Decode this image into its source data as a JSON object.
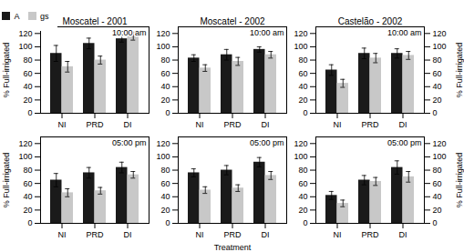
{
  "chart_data": [
    {
      "type": "bar",
      "title": "Moscatel - 2001",
      "annotation": "10:00 am",
      "categories": [
        "NI",
        "PRD",
        "DI"
      ],
      "series": [
        {
          "name": "A",
          "color": "#1a1a1a",
          "values": [
            90,
            105,
            112
          ],
          "errors": [
            12,
            8,
            5
          ]
        },
        {
          "name": "gs",
          "color": "#c8c8c8",
          "values": [
            70,
            80,
            116
          ],
          "errors": [
            8,
            6,
            6
          ]
        }
      ],
      "ylim": [
        0,
        130
      ],
      "yticks": [
        0,
        20,
        40,
        60,
        80,
        100,
        120
      ],
      "ylabel": "% Full-irrigated",
      "legend": "upper left"
    },
    {
      "type": "bar",
      "title": "Moscatel - 2002",
      "annotation": "10:00 am",
      "categories": [
        "NI",
        "PRD",
        "DI"
      ],
      "series": [
        {
          "name": "A",
          "color": "#1a1a1a",
          "values": [
            83,
            88,
            96
          ],
          "errors": [
            5,
            8,
            4
          ]
        },
        {
          "name": "gs",
          "color": "#c8c8c8",
          "values": [
            68,
            78,
            88
          ],
          "errors": [
            5,
            6,
            5
          ]
        }
      ],
      "ylim": [
        0,
        130
      ],
      "yticks": [
        0,
        20,
        40,
        60,
        80,
        100,
        120
      ]
    },
    {
      "type": "bar",
      "title": "Castelão - 2002",
      "annotation": "10:00 am",
      "categories": [
        "NI",
        "PRD",
        "DI"
      ],
      "series": [
        {
          "name": "A",
          "color": "#1a1a1a",
          "values": [
            65,
            90,
            90
          ],
          "errors": [
            8,
            8,
            7
          ]
        },
        {
          "name": "gs",
          "color": "#c8c8c8",
          "values": [
            45,
            83,
            87
          ],
          "errors": [
            6,
            7,
            6
          ]
        }
      ],
      "ylim": [
        0,
        130
      ],
      "yticks": [
        0,
        20,
        40,
        60,
        80,
        100,
        120
      ],
      "y2lim": [
        0,
        130
      ],
      "y2ticks": [
        0,
        20,
        40,
        60,
        80,
        100,
        120
      ],
      "y2label": "% Full-irrigated"
    },
    {
      "type": "bar",
      "annotation": "05:00 pm",
      "categories": [
        "NI",
        "PRD",
        "DI"
      ],
      "series": [
        {
          "name": "A",
          "color": "#1a1a1a",
          "values": [
            65,
            76,
            84
          ],
          "errors": [
            10,
            8,
            8
          ]
        },
        {
          "name": "gs",
          "color": "#c8c8c8",
          "values": [
            46,
            49,
            73
          ],
          "errors": [
            6,
            5,
            5
          ]
        }
      ],
      "ylim": [
        0,
        130
      ],
      "yticks": [
        0,
        20,
        40,
        60,
        80,
        100,
        120
      ],
      "ylabel": "% Full-irrigated"
    },
    {
      "type": "bar",
      "annotation": "05:00 pm",
      "categories": [
        "NI",
        "PRD",
        "DI"
      ],
      "series": [
        {
          "name": "A",
          "color": "#1a1a1a",
          "values": [
            76,
            80,
            92
          ],
          "errors": [
            6,
            7,
            7
          ]
        },
        {
          "name": "gs",
          "color": "#c8c8c8",
          "values": [
            50,
            53,
            72
          ],
          "errors": [
            5,
            5,
            6
          ]
        }
      ],
      "ylim": [
        0,
        130
      ],
      "yticks": [
        0,
        20,
        40,
        60,
        80,
        100,
        120
      ],
      "xlabel": "Treatment"
    },
    {
      "type": "bar",
      "annotation": "05:00 pm",
      "categories": [
        "NI",
        "PRD",
        "DI"
      ],
      "series": [
        {
          "name": "A",
          "color": "#1a1a1a",
          "values": [
            42,
            65,
            84
          ],
          "errors": [
            6,
            7,
            10
          ]
        },
        {
          "name": "gs",
          "color": "#c8c8c8",
          "values": [
            30,
            63,
            70
          ],
          "errors": [
            5,
            6,
            8
          ]
        }
      ],
      "ylim": [
        0,
        130
      ],
      "yticks": [
        0,
        20,
        40,
        60,
        80,
        100,
        120
      ],
      "y2lim": [
        0,
        130
      ],
      "y2ticks": [
        0,
        20,
        40,
        60,
        80,
        100,
        120
      ],
      "y2label": "% Full-irrigated"
    }
  ]
}
